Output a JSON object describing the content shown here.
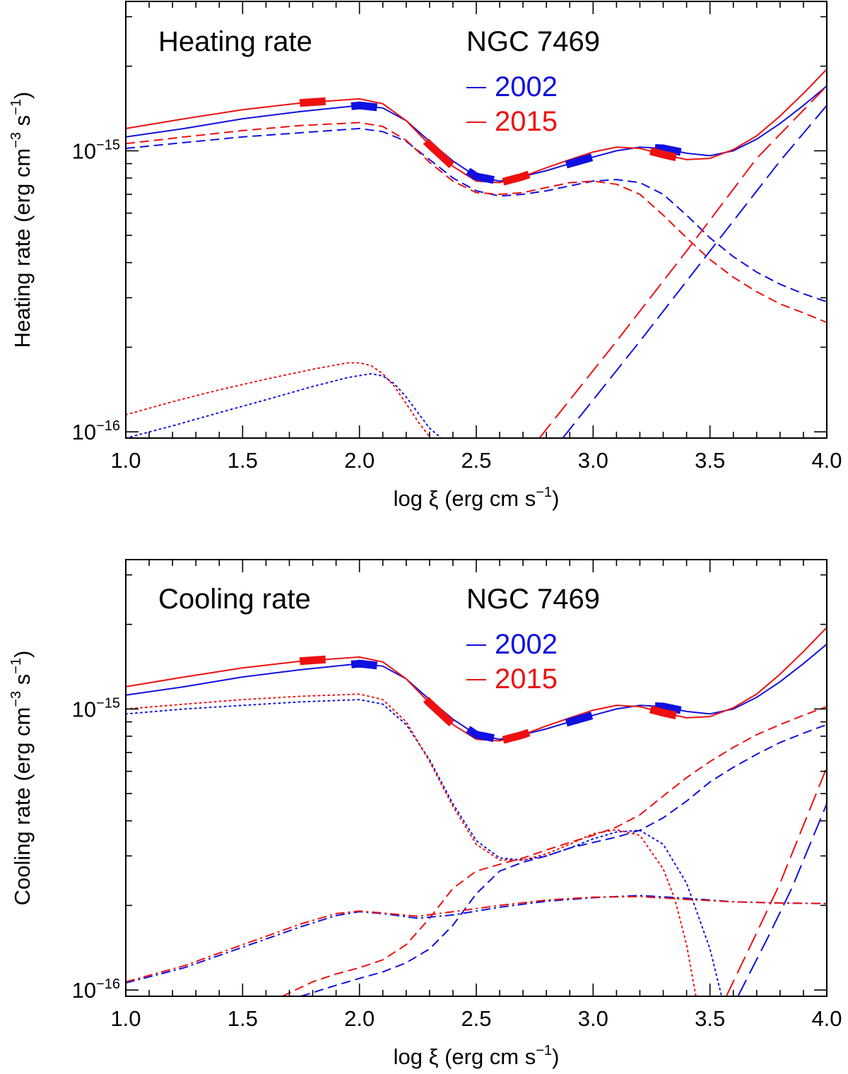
{
  "figure": "NGC 7469 heating and cooling rates versus ionization parameter",
  "colors": {
    "y2002": "#1010e0",
    "y2015": "#ee1010"
  },
  "chart_data": [
    {
      "type": "line",
      "panel_title": "Heating rate",
      "object": "NGC 7469",
      "xlabel": "log ξ (erg cm s",
      "xlabel_exp": "−1",
      "xlabel_close": ")",
      "ylabel": "Heating rate (erg cm",
      "ylabel_exp1": "−3",
      "ylabel_mid": " s",
      "ylabel_exp2": "−1",
      "ylabel_close": ")",
      "xlim": [
        1.0,
        4.0
      ],
      "ylim": [
        9.5e-17,
        3.4e-15
      ],
      "yscale": "log",
      "xticks": [
        "1.0",
        "1.5",
        "2.0",
        "2.5",
        "3.0",
        "3.5",
        "4.0"
      ],
      "yticks": [
        {
          "mant": "10",
          "exp": "−16",
          "value": 1e-16
        },
        {
          "mant": "10",
          "exp": "−15",
          "value": 1e-15
        }
      ],
      "legend": [
        {
          "label": "2002",
          "color": "#1010e0"
        },
        {
          "label": "2015",
          "color": "#ee1010"
        }
      ],
      "series": [
        {
          "name": "2002 total",
          "color": "#1010e0",
          "style": "solid",
          "x": [
            1.0,
            1.25,
            1.5,
            1.75,
            2.0,
            2.1,
            2.2,
            2.3,
            2.4,
            2.5,
            2.6,
            2.7,
            2.8,
            2.9,
            3.0,
            3.1,
            3.2,
            3.3,
            3.4,
            3.5,
            3.6,
            3.7,
            3.8,
            3.9,
            4.0
          ],
          "y": [
            1.12e-15,
            1.2e-15,
            1.3e-15,
            1.38e-15,
            1.45e-15,
            1.42e-15,
            1.28e-15,
            1.08e-15,
            9.2e-16,
            8.1e-16,
            7.8e-16,
            8.1e-16,
            8.5e-16,
            9e-16,
            9.5e-16,
            1e-15,
            1.03e-15,
            1.02e-15,
            9.8e-16,
            9.6e-16,
            1e-15,
            1.1e-15,
            1.25e-15,
            1.45e-15,
            1.7e-15
          ]
        },
        {
          "name": "2015 total",
          "color": "#ee1010",
          "style": "solid",
          "x": [
            1.0,
            1.25,
            1.5,
            1.75,
            2.0,
            2.1,
            2.2,
            2.3,
            2.4,
            2.5,
            2.6,
            2.7,
            2.8,
            2.9,
            3.0,
            3.1,
            3.2,
            3.3,
            3.4,
            3.5,
            3.6,
            3.7,
            3.8,
            3.9,
            4.0
          ],
          "y": [
            1.2e-15,
            1.3e-15,
            1.4e-15,
            1.48e-15,
            1.53e-15,
            1.47e-15,
            1.28e-15,
            1.05e-15,
            8.8e-16,
            7.8e-16,
            7.7e-16,
            8.1e-16,
            8.7e-16,
            9.3e-16,
            9.9e-16,
            1.03e-15,
            1.02e-15,
            9.7e-16,
            9.3e-16,
            9.4e-16,
            1.01e-15,
            1.13e-15,
            1.33e-15,
            1.6e-15,
            1.95e-15
          ]
        },
        {
          "name": "2002 dashed",
          "color": "#1010e0",
          "style": "dash",
          "x": [
            1.0,
            1.25,
            1.5,
            1.75,
            2.0,
            2.1,
            2.2,
            2.3,
            2.4,
            2.5,
            2.6,
            2.7,
            2.8,
            2.9,
            3.0,
            3.1,
            3.2,
            3.3,
            3.4,
            3.5,
            3.6,
            3.7,
            3.8,
            3.9,
            4.0
          ],
          "y": [
            1.02e-15,
            1.07e-15,
            1.12e-15,
            1.16e-15,
            1.2e-15,
            1.17e-15,
            1.08e-15,
            9.3e-16,
            8e-16,
            7.2e-16,
            6.9e-16,
            7e-16,
            7.2e-16,
            7.5e-16,
            7.8e-16,
            7.9e-16,
            7.7e-16,
            7e-16,
            5.9e-16,
            4.9e-16,
            4.2e-16,
            3.7e-16,
            3.35e-16,
            3.1e-16,
            2.9e-16
          ]
        },
        {
          "name": "2015 dashed",
          "color": "#ee1010",
          "style": "dash",
          "x": [
            1.0,
            1.25,
            1.5,
            1.75,
            2.0,
            2.1,
            2.2,
            2.3,
            2.4,
            2.5,
            2.6,
            2.7,
            2.8,
            2.9,
            3.0,
            3.1,
            3.2,
            3.3,
            3.4,
            3.5,
            3.6,
            3.7,
            3.8,
            3.9,
            4.0
          ],
          "y": [
            1.06e-15,
            1.12e-15,
            1.18e-15,
            1.23e-15,
            1.26e-15,
            1.22e-15,
            1.09e-15,
            9.1e-16,
            7.8e-16,
            7.1e-16,
            7e-16,
            7.1e-16,
            7.4e-16,
            7.7e-16,
            7.8e-16,
            7.6e-16,
            7e-16,
            5.9e-16,
            4.9e-16,
            4.1e-16,
            3.55e-16,
            3.15e-16,
            2.85e-16,
            2.65e-16,
            2.45e-16
          ]
        },
        {
          "name": "2002 long dash",
          "color": "#1010e0",
          "style": "longdash",
          "x": [
            2.87,
            3.2,
            3.5,
            3.8,
            4.0
          ],
          "y": [
            9.5e-17,
            2.1e-16,
            4.4e-16,
            9.2e-16,
            1.45e-15
          ]
        },
        {
          "name": "2015 long dash",
          "color": "#ee1010",
          "style": "longdash",
          "x": [
            2.77,
            3.1,
            3.4,
            3.7,
            4.0
          ],
          "y": [
            9.5e-17,
            2.1e-16,
            4.4e-16,
            9.4e-16,
            1.7e-15
          ]
        },
        {
          "name": "2002 dotted",
          "color": "#1010e0",
          "style": "dot",
          "x": [
            1.0,
            1.2,
            1.4,
            1.6,
            1.8,
            1.95,
            2.05,
            2.1,
            2.15,
            2.2,
            2.25,
            2.3,
            2.35
          ],
          "y": [
            9.5e-17,
            1.05e-16,
            1.17e-16,
            1.3e-16,
            1.45e-16,
            1.56e-16,
            1.61e-16,
            1.58e-16,
            1.48e-16,
            1.33e-16,
            1.17e-16,
            1.03e-16,
            9.5e-17
          ]
        },
        {
          "name": "2015 dotted",
          "color": "#ee1010",
          "style": "dot",
          "x": [
            1.0,
            1.2,
            1.4,
            1.6,
            1.8,
            1.95,
            2.0,
            2.05,
            2.1,
            2.15,
            2.2,
            2.25,
            2.3
          ],
          "y": [
            1.15e-16,
            1.28e-16,
            1.41e-16,
            1.54e-16,
            1.67e-16,
            1.76e-16,
            1.76e-16,
            1.72e-16,
            1.61e-16,
            1.45e-16,
            1.26e-16,
            1.09e-16,
            9.6e-17
          ]
        }
      ],
      "markers": [
        {
          "color": "#ee1010",
          "x": 1.8
        },
        {
          "color": "#1010e0",
          "x": 2.02
        },
        {
          "color": "#ee1010",
          "x": 2.34
        },
        {
          "color": "#1010e0",
          "x": 2.52
        },
        {
          "color": "#ee1010",
          "x": 2.67
        },
        {
          "color": "#1010e0",
          "x": 2.94
        },
        {
          "color": "#1010e0",
          "x": 3.32
        },
        {
          "color": "#ee1010",
          "x": 3.3
        }
      ]
    },
    {
      "type": "line",
      "panel_title": "Cooling rate",
      "object": "NGC 7469",
      "xlabel": "log ξ (erg cm s",
      "xlabel_exp": "−1",
      "xlabel_close": ")",
      "ylabel": "Cooling rate (erg cm",
      "ylabel_exp1": "−3",
      "ylabel_mid": " s",
      "ylabel_exp2": "−1",
      "ylabel_close": ")",
      "xlim": [
        1.0,
        4.0
      ],
      "ylim": [
        9.5e-17,
        3.4e-15
      ],
      "yscale": "log",
      "xticks": [
        "1.0",
        "1.5",
        "2.0",
        "2.5",
        "3.0",
        "3.5",
        "4.0"
      ],
      "yticks": [
        {
          "mant": "10",
          "exp": "−16",
          "value": 1e-16
        },
        {
          "mant": "10",
          "exp": "−15",
          "value": 1e-15
        }
      ],
      "legend": [
        {
          "label": "2002",
          "color": "#1010e0"
        },
        {
          "label": "2015",
          "color": "#ee1010"
        }
      ],
      "series": [
        {
          "name": "2002 total",
          "color": "#1010e0",
          "style": "solid",
          "x": [
            1.0,
            1.25,
            1.5,
            1.75,
            2.0,
            2.1,
            2.2,
            2.3,
            2.4,
            2.5,
            2.6,
            2.7,
            2.8,
            2.9,
            3.0,
            3.1,
            3.2,
            3.3,
            3.4,
            3.5,
            3.6,
            3.7,
            3.8,
            3.9,
            4.0
          ],
          "y": [
            1.12e-15,
            1.2e-15,
            1.3e-15,
            1.38e-15,
            1.45e-15,
            1.42e-15,
            1.28e-15,
            1.08e-15,
            9.2e-16,
            8.1e-16,
            7.8e-16,
            8.1e-16,
            8.5e-16,
            9e-16,
            9.5e-16,
            1e-15,
            1.03e-15,
            1.02e-15,
            9.8e-16,
            9.6e-16,
            1e-15,
            1.1e-15,
            1.25e-15,
            1.45e-15,
            1.7e-15
          ]
        },
        {
          "name": "2015 total",
          "color": "#ee1010",
          "style": "solid",
          "x": [
            1.0,
            1.25,
            1.5,
            1.75,
            2.0,
            2.1,
            2.2,
            2.3,
            2.4,
            2.5,
            2.6,
            2.7,
            2.8,
            2.9,
            3.0,
            3.1,
            3.2,
            3.3,
            3.4,
            3.5,
            3.6,
            3.7,
            3.8,
            3.9,
            4.0
          ],
          "y": [
            1.2e-15,
            1.3e-15,
            1.4e-15,
            1.48e-15,
            1.53e-15,
            1.47e-15,
            1.28e-15,
            1.05e-15,
            8.8e-16,
            7.8e-16,
            7.7e-16,
            8.1e-16,
            8.7e-16,
            9.3e-16,
            9.9e-16,
            1.03e-15,
            1.02e-15,
            9.7e-16,
            9.3e-16,
            9.4e-16,
            1.01e-15,
            1.13e-15,
            1.33e-15,
            1.6e-15,
            1.95e-15
          ]
        },
        {
          "name": "2002 dotted",
          "color": "#1010e0",
          "style": "dot",
          "x": [
            1.0,
            1.25,
            1.5,
            1.75,
            2.0,
            2.1,
            2.2,
            2.3,
            2.4,
            2.5,
            2.6,
            2.7,
            2.8,
            2.9,
            3.0,
            3.1,
            3.2,
            3.3,
            3.4,
            3.5,
            3.55
          ],
          "y": [
            9.6e-16,
            1e-15,
            1.03e-15,
            1.06e-15,
            1.08e-15,
            1.04e-15,
            8.8e-16,
            6.6e-16,
            4.6e-16,
            3.4e-16,
            2.95e-16,
            2.9e-16,
            3e-16,
            3.2e-16,
            3.45e-16,
            3.65e-16,
            3.7e-16,
            3.3e-16,
            2.4e-16,
            1.4e-16,
            9.5e-17
          ]
        },
        {
          "name": "2015 dotted",
          "color": "#ee1010",
          "style": "dot",
          "x": [
            1.0,
            1.25,
            1.5,
            1.75,
            2.0,
            2.1,
            2.2,
            2.3,
            2.4,
            2.5,
            2.6,
            2.7,
            2.8,
            2.9,
            3.0,
            3.1,
            3.2,
            3.3,
            3.35,
            3.4,
            3.44
          ],
          "y": [
            1e-15,
            1.04e-15,
            1.08e-15,
            1.11e-15,
            1.13e-15,
            1.08e-15,
            9e-16,
            6.5e-16,
            4.5e-16,
            3.3e-16,
            2.9e-16,
            2.9e-16,
            3.05e-16,
            3.3e-16,
            3.6e-16,
            3.72e-16,
            3.55e-16,
            2.7e-16,
            2.1e-16,
            1.45e-16,
            9.5e-17
          ]
        },
        {
          "name": "2002 dashed",
          "color": "#1010e0",
          "style": "dash",
          "x": [
            1.75,
            1.9,
            2.0,
            2.1,
            2.2,
            2.3,
            2.4,
            2.5,
            2.6,
            2.7,
            2.8,
            2.9,
            3.0,
            3.1,
            3.2,
            3.3,
            3.4,
            3.5,
            3.6,
            3.7,
            3.8,
            3.9,
            4.0
          ],
          "y": [
            9.5e-17,
            1.04e-16,
            1.1e-16,
            1.16e-16,
            1.25e-16,
            1.4e-16,
            1.7e-16,
            2.2e-16,
            2.65e-16,
            2.85e-16,
            3e-16,
            3.2e-16,
            3.35e-16,
            3.5e-16,
            3.7e-16,
            4.1e-16,
            4.7e-16,
            5.5e-16,
            6.2e-16,
            6.9e-16,
            7.6e-16,
            8.2e-16,
            8.8e-16
          ]
        },
        {
          "name": "2015 dashed",
          "color": "#ee1010",
          "style": "dash",
          "x": [
            1.67,
            1.8,
            1.9,
            2.0,
            2.1,
            2.2,
            2.3,
            2.4,
            2.5,
            2.6,
            2.7,
            2.8,
            2.9,
            3.0,
            3.1,
            3.2,
            3.3,
            3.4,
            3.5,
            3.6,
            3.7,
            3.8,
            3.9,
            4.0
          ],
          "y": [
            9.5e-17,
            1.07e-16,
            1.14e-16,
            1.2e-16,
            1.28e-16,
            1.45e-16,
            1.8e-16,
            2.3e-16,
            2.65e-16,
            2.8e-16,
            2.95e-16,
            3.15e-16,
            3.35e-16,
            3.55e-16,
            3.8e-16,
            4.2e-16,
            4.9e-16,
            5.7e-16,
            6.5e-16,
            7.3e-16,
            8.1e-16,
            8.8e-16,
            9.5e-16,
            1.02e-15
          ]
        },
        {
          "name": "2002 long dash",
          "color": "#1010e0",
          "style": "longdash",
          "x": [
            3.62,
            3.75,
            3.85,
            4.0
          ],
          "y": [
            9.5e-17,
            1.55e-16,
            2.3e-16,
            4.6e-16
          ]
        },
        {
          "name": "2015 long dash",
          "color": "#ee1010",
          "style": "longdash",
          "x": [
            3.57,
            3.7,
            3.8,
            4.0
          ],
          "y": [
            9.5e-17,
            1.6e-16,
            2.4e-16,
            6.2e-16
          ]
        },
        {
          "name": "2002 dash-dot",
          "color": "#1010e0",
          "style": "dashdot",
          "x": [
            1.0,
            1.25,
            1.5,
            1.75,
            1.9,
            2.0,
            2.1,
            2.25,
            2.4,
            2.6,
            2.8,
            3.0,
            3.2,
            3.4,
            3.6,
            3.8,
            4.0
          ],
          "y": [
            1.06e-16,
            1.2e-16,
            1.42e-16,
            1.68e-16,
            1.84e-16,
            1.9e-16,
            1.87e-16,
            1.8e-16,
            1.85e-16,
            1.97e-16,
            2.07e-16,
            2.13e-16,
            2.17e-16,
            2.12e-16,
            2.06e-16,
            2.04e-16,
            2.03e-16
          ]
        },
        {
          "name": "2015 dash-dot",
          "color": "#ee1010",
          "style": "dashdot",
          "x": [
            1.0,
            1.25,
            1.5,
            1.75,
            1.9,
            2.0,
            2.1,
            2.25,
            2.4,
            2.6,
            2.8,
            3.0,
            3.2,
            3.4,
            3.6,
            3.8,
            4.0
          ],
          "y": [
            1.07e-16,
            1.22e-16,
            1.45e-16,
            1.72e-16,
            1.87e-16,
            1.91e-16,
            1.88e-16,
            1.83e-16,
            1.9e-16,
            2e-16,
            2.09e-16,
            2.14e-16,
            2.15e-16,
            2.1e-16,
            2.06e-16,
            2.04e-16,
            2.03e-16
          ]
        }
      ],
      "markers": [
        {
          "color": "#ee1010",
          "x": 1.8
        },
        {
          "color": "#1010e0",
          "x": 2.02
        },
        {
          "color": "#ee1010",
          "x": 2.34
        },
        {
          "color": "#1010e0",
          "x": 2.52
        },
        {
          "color": "#ee1010",
          "x": 2.67
        },
        {
          "color": "#1010e0",
          "x": 2.94
        },
        {
          "color": "#1010e0",
          "x": 3.32
        },
        {
          "color": "#ee1010",
          "x": 3.3
        }
      ]
    }
  ]
}
